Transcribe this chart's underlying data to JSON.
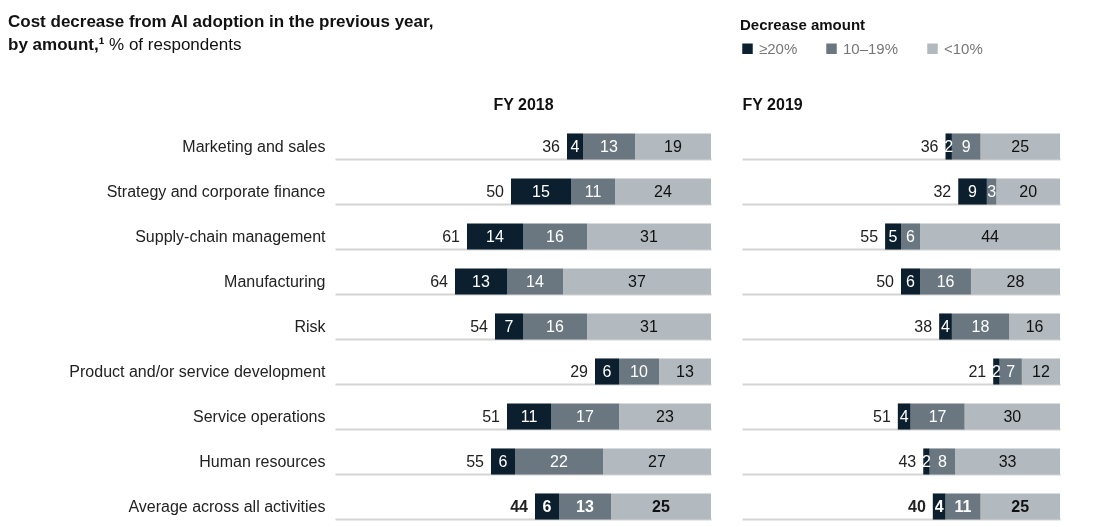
{
  "chart_data": [
    {
      "type": "bar",
      "orientation": "horizontal",
      "stacked": true,
      "title": "Cost decrease from AI adoption in the previous year, by amount,¹",
      "subtitle": "% of respondents",
      "xlabel": "FY 2018",
      "legend_title": "Decrease amount",
      "legend": "top right",
      "grid": "y",
      "tick_labels": "y",
      "data_labels": true,
      "categories": [
        "Marketing and sales",
        "Strategy and corporate finance",
        "Supply-chain management",
        "Manufacturing",
        "Risk",
        "Product and/or service development",
        "Service operations",
        "Human resources",
        "Average across all activities"
      ],
      "series": [
        {
          "name": "<10%",
          "color": "#b2b9bf",
          "values": [
            19,
            24,
            31,
            37,
            31,
            13,
            23,
            27,
            25
          ]
        },
        {
          "name": "10–19%",
          "color": "#6b7780",
          "values": [
            13,
            11,
            16,
            14,
            16,
            10,
            17,
            22,
            13
          ]
        },
        {
          "name": "≥20%",
          "color": "#0b1f2e",
          "values": [
            4,
            15,
            14,
            13,
            7,
            6,
            11,
            6,
            6
          ]
        }
      ],
      "totals": [
        "36",
        "50",
        "61",
        "64",
        "54",
        "29",
        "51",
        "55",
        "44"
      ],
      "xlim": [
        94,
        0
      ]
    },
    {
      "type": "bar",
      "orientation": "horizontal",
      "stacked": true,
      "xlabel": "FY 2019",
      "grid": "y",
      "tick_labels": false,
      "data_labels": true,
      "categories": [
        null,
        null,
        null,
        null,
        null,
        null,
        null,
        null,
        null
      ],
      "series": [
        {
          "color": "#b2b9bf",
          "values": [
            25,
            20,
            44,
            28,
            16,
            12,
            30,
            33,
            25
          ]
        },
        {
          "color": "#6b7780",
          "values": [
            9,
            3,
            6,
            16,
            18,
            7,
            17,
            8,
            11
          ]
        },
        {
          "color": "#0b1f2e",
          "values": [
            2,
            9,
            5,
            6,
            4,
            2,
            4,
            2,
            4
          ]
        }
      ],
      "totals": [
        "36",
        "32",
        "55",
        "50",
        "38",
        "21",
        "51",
        "43",
        "40"
      ],
      "xlim": [
        100,
        0
      ]
    }
  ]
}
